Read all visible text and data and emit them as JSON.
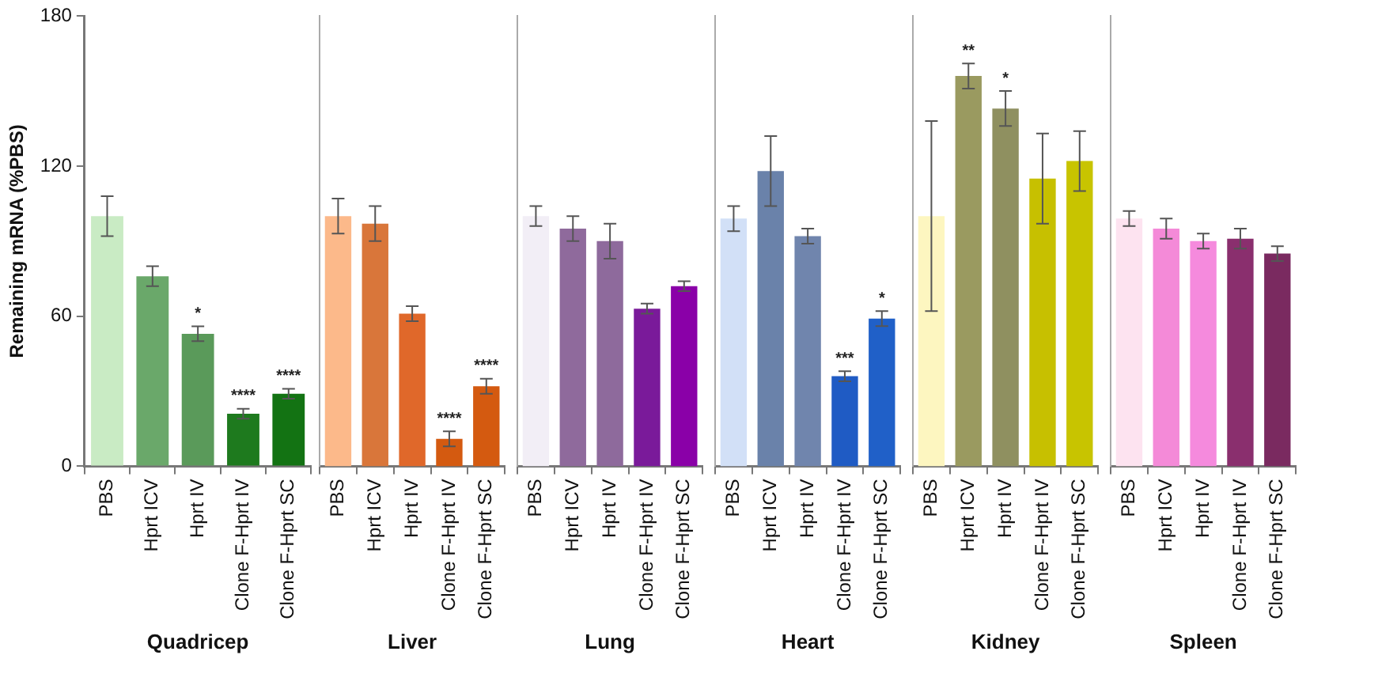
{
  "chart_data": [
    {
      "type": "bar",
      "xlabel": "Quadricep",
      "ylabel": "Remaining mRNA (%PBS)",
      "categories": [
        "PBS",
        "Hprt ICV",
        "Hprt IV",
        "Clone F-Hprt IV",
        "Clone F-Hprt SC"
      ],
      "values": [
        100,
        76,
        53,
        21,
        29
      ],
      "errors": [
        8,
        4,
        3,
        2,
        2
      ],
      "colors": [
        "#c9ebc4",
        "#6aa86a",
        "#5a9a5a",
        "#1e7a1e",
        "#137313"
      ],
      "ylim": [
        0,
        180
      ],
      "yticks": [
        0,
        60,
        120,
        180
      ],
      "value_labels": [
        null,
        null,
        "*",
        "****",
        "****"
      ]
    },
    {
      "type": "bar",
      "xlabel": "Liver",
      "categories": [
        "PBS",
        "Hprt ICV",
        "Hprt IV",
        "Clone F-Hprt IV",
        "Clone F-Hprt SC"
      ],
      "values": [
        100,
        97,
        61,
        11,
        32
      ],
      "errors": [
        7,
        7,
        3,
        3,
        3
      ],
      "colors": [
        "#fcb98a",
        "#d9763a",
        "#e0682a",
        "#d45a10",
        "#d45a10"
      ],
      "ylim": [
        0,
        180
      ],
      "tick_labels": "x",
      "value_labels": [
        null,
        null,
        null,
        "****",
        "****"
      ]
    },
    {
      "type": "bar",
      "xlabel": "Lung",
      "categories": [
        "PBS",
        "Hprt ICV",
        "Hprt IV",
        "Clone F-Hprt IV",
        "Clone F-Hprt SC"
      ],
      "values": [
        100,
        95,
        90,
        63,
        72
      ],
      "errors": [
        4,
        5,
        7,
        2,
        2
      ],
      "colors": [
        "#f2eef6",
        "#8f6a9c",
        "#8e6a9c",
        "#7a1a9a",
        "#8a00a8"
      ],
      "ylim": [
        0,
        180
      ],
      "tick_labels": "x"
    },
    {
      "type": "bar",
      "xlabel": "Heart",
      "categories": [
        "PBS",
        "Hprt ICV",
        "Hprt IV",
        "Clone F-Hprt IV",
        "Clone F-Hprt SC"
      ],
      "values": [
        99,
        118,
        92,
        36,
        59
      ],
      "errors": [
        5,
        14,
        3,
        2,
        3
      ],
      "colors": [
        "#d2e0f7",
        "#6a82aa",
        "#7085ad",
        "#1f5bc4",
        "#2060c8"
      ],
      "ylim": [
        0,
        180
      ],
      "tick_labels": "x",
      "value_labels": [
        null,
        null,
        null,
        "***",
        "*"
      ]
    },
    {
      "type": "bar",
      "xlabel": "Kidney",
      "categories": [
        "PBS",
        "Hprt ICV",
        "Hprt IV",
        "Clone F-Hprt IV",
        "Clone F-Hprt SC"
      ],
      "values": [
        100,
        156,
        143,
        115,
        122
      ],
      "errors": [
        38,
        5,
        7,
        18,
        12
      ],
      "colors": [
        "#fdf6c0",
        "#9a9a60",
        "#8f9060",
        "#c7c000",
        "#c8c400"
      ],
      "ylim": [
        0,
        180
      ],
      "tick_labels": "x",
      "value_labels": [
        null,
        "**",
        "*",
        null,
        null
      ]
    },
    {
      "type": "bar",
      "xlabel": "Spleen",
      "categories": [
        "PBS",
        "Hprt ICV",
        "Hprt IV",
        "Clone F-Hprt IV",
        "Clone F-Hprt SC"
      ],
      "values": [
        99,
        95,
        90,
        91,
        85
      ],
      "errors": [
        3,
        4,
        3,
        4,
        3
      ],
      "colors": [
        "#fde3f0",
        "#f48ad8",
        "#f58add",
        "#8a2f6e",
        "#7a2a60"
      ],
      "ylim": [
        0,
        180
      ],
      "tick_labels": "x"
    }
  ]
}
